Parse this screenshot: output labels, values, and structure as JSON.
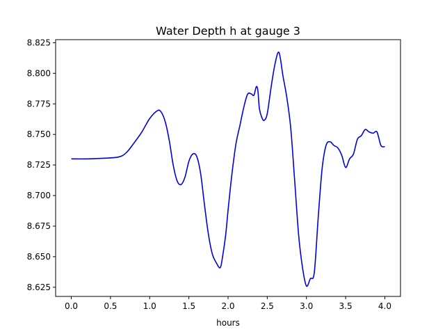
{
  "chart_data": {
    "type": "line",
    "title": "Water Depth h at gauge 3",
    "xlabel": "hours",
    "ylabel": "",
    "xlim": [
      -0.2,
      4.2
    ],
    "ylim": [
      8.6175,
      8.8275
    ],
    "xticks": [
      0.0,
      0.5,
      1.0,
      1.5,
      2.0,
      2.5,
      3.0,
      3.5,
      4.0
    ],
    "xtick_labels": [
      "0.0",
      "0.5",
      "1.0",
      "1.5",
      "2.0",
      "2.5",
      "3.0",
      "3.5",
      "4.0"
    ],
    "yticks": [
      8.625,
      8.65,
      8.675,
      8.7,
      8.725,
      8.75,
      8.775,
      8.8,
      8.825
    ],
    "ytick_labels": [
      "8.625",
      "8.650",
      "8.675",
      "8.700",
      "8.725",
      "8.750",
      "8.775",
      "8.800",
      "8.825"
    ],
    "grid": false,
    "series": [
      {
        "color": "#0000dd",
        "x": [
          0.0,
          0.2,
          0.4,
          0.6,
          0.7,
          0.8,
          0.9,
          1.0,
          1.1,
          1.15,
          1.2,
          1.25,
          1.3,
          1.35,
          1.4,
          1.45,
          1.5,
          1.55,
          1.6,
          1.65,
          1.7,
          1.75,
          1.8,
          1.85,
          1.9,
          1.93,
          1.97,
          2.0,
          2.05,
          2.1,
          2.15,
          2.2,
          2.25,
          2.3,
          2.33,
          2.36,
          2.38,
          2.4,
          2.43,
          2.46,
          2.5,
          2.55,
          2.6,
          2.65,
          2.7,
          2.75,
          2.8,
          2.85,
          2.9,
          2.95,
          3.0,
          3.05,
          3.1,
          3.15,
          3.2,
          3.25,
          3.3,
          3.35,
          3.4,
          3.45,
          3.5,
          3.55,
          3.6,
          3.65,
          3.7,
          3.75,
          3.8,
          3.85,
          3.9,
          3.95,
          4.0
        ],
        "values": [
          8.73,
          8.73,
          8.7305,
          8.7315,
          8.735,
          8.743,
          8.752,
          8.763,
          8.7695,
          8.768,
          8.76,
          8.745,
          8.725,
          8.712,
          8.709,
          8.715,
          8.728,
          8.734,
          8.732,
          8.718,
          8.692,
          8.668,
          8.652,
          8.645,
          8.641,
          8.65,
          8.668,
          8.688,
          8.718,
          8.742,
          8.757,
          8.772,
          8.783,
          8.783,
          8.782,
          8.789,
          8.786,
          8.771,
          8.764,
          8.7615,
          8.767,
          8.789,
          8.808,
          8.817,
          8.798,
          8.78,
          8.755,
          8.712,
          8.668,
          8.641,
          8.626,
          8.632,
          8.637,
          8.682,
          8.722,
          8.741,
          8.744,
          8.741,
          8.739,
          8.733,
          8.723,
          8.73,
          8.734,
          8.746,
          8.749,
          8.754,
          8.752,
          8.751,
          8.752,
          8.741,
          8.74
        ]
      }
    ]
  }
}
